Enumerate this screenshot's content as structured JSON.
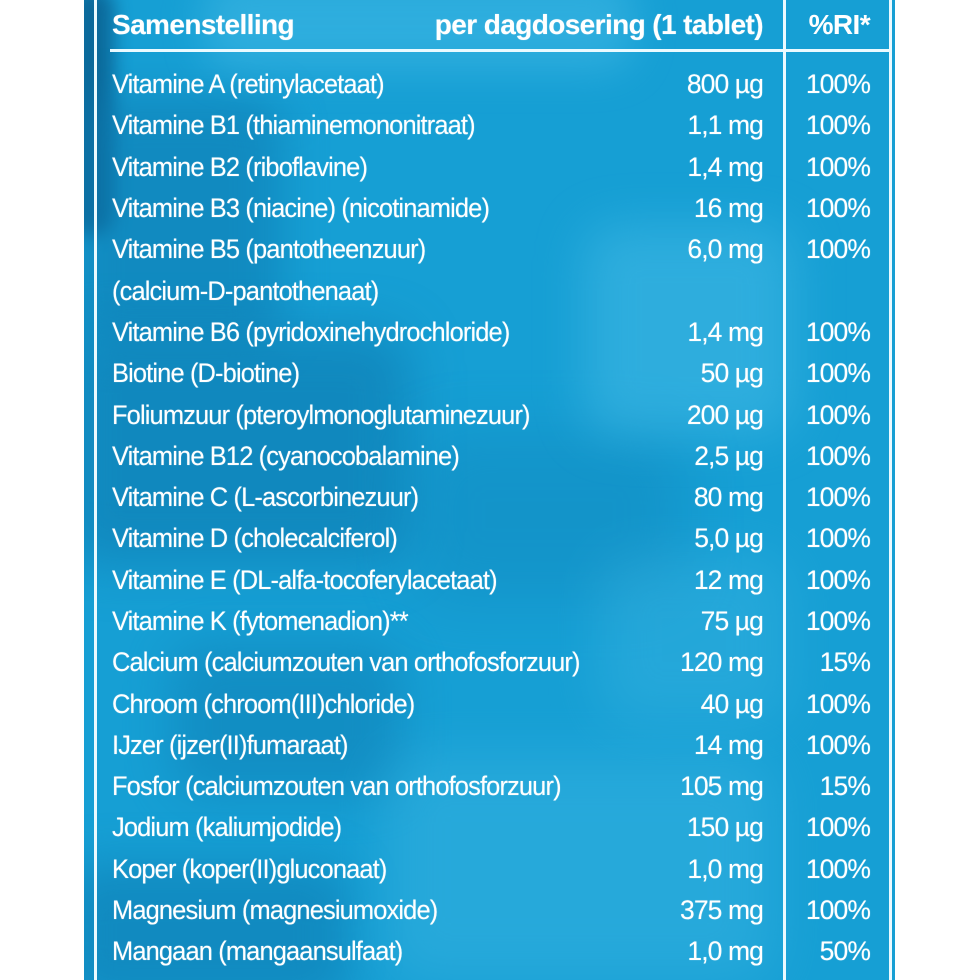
{
  "page": {
    "background": "#ffffff"
  },
  "label": {
    "colors": {
      "page_bg": "#ffffff",
      "base": "#169fd4",
      "dark": "#0d7ab0",
      "dark2": "#0a6394",
      "light": "#46bce7",
      "line": "#eafaff",
      "text": "#ffffff"
    },
    "header": {
      "composition": "Samenstelling",
      "per_dose": "per dagdosering (1 tablet)",
      "ri": "%RI*"
    },
    "rows": [
      {
        "name": "Vitamine A (retinylacetaat)",
        "amount": "800 µg",
        "ri": "100%"
      },
      {
        "name": "Vitamine B1 (thiaminemononitraat)",
        "amount": "1,1 mg",
        "ri": "100%"
      },
      {
        "name": "Vitamine B2 (riboflavine)",
        "amount": "1,4 mg",
        "ri": "100%"
      },
      {
        "name": "Vitamine B3 (niacine) (nicotinamide)",
        "amount": "16 mg",
        "ri": "100%"
      },
      {
        "name": "Vitamine B5 (pantotheenzuur)",
        "amount": "6,0 mg",
        "ri": "100%"
      },
      {
        "name": "(calcium-D-pantothenaat)",
        "amount": "",
        "ri": ""
      },
      {
        "name": "Vitamine B6 (pyridoxinehydrochloride)",
        "amount": "1,4 mg",
        "ri": "100%"
      },
      {
        "name": "Biotine (D-biotine)",
        "amount": "50 µg",
        "ri": "100%"
      },
      {
        "name": "Foliumzuur (pteroylmonoglutaminezuur)",
        "amount": "200 µg",
        "ri": "100%"
      },
      {
        "name": "Vitamine B12 (cyanocobalamine)",
        "amount": "2,5 µg",
        "ri": "100%"
      },
      {
        "name": "Vitamine C (L-ascorbinezuur)",
        "amount": "80 mg",
        "ri": "100%"
      },
      {
        "name": "Vitamine D (cholecalciferol)",
        "amount": "5,0 µg",
        "ri": "100%"
      },
      {
        "name": "Vitamine E (DL-alfa-tocoferylacetaat)",
        "amount": "12 mg",
        "ri": "100%"
      },
      {
        "name": "Vitamine K (fytomenadion)**",
        "amount": "75 µg",
        "ri": "100%"
      },
      {
        "name": "Calcium (calciumzouten van orthofosforzuur)",
        "amount": "120 mg",
        "ri": "15%"
      },
      {
        "name": "Chroom (chroom(III)chloride)",
        "amount": "40 µg",
        "ri": "100%"
      },
      {
        "name": "IJzer (ijzer(II)fumaraat)",
        "amount": "14 mg",
        "ri": "100%"
      },
      {
        "name": "Fosfor (calciumzouten van orthofosforzuur)",
        "amount": "105 mg",
        "ri": "15%"
      },
      {
        "name": "Jodium (kaliumjodide)",
        "amount": "150 µg",
        "ri": "100%"
      },
      {
        "name": "Koper (koper(II)gluconaat)",
        "amount": "1,0 mg",
        "ri": "100%"
      },
      {
        "name": "Magnesium (magnesiumoxide)",
        "amount": "375 mg",
        "ri": "100%"
      },
      {
        "name": "Mangaan (mangaansulfaat)",
        "amount": "1,0 mg",
        "ri": "50%"
      }
    ]
  }
}
